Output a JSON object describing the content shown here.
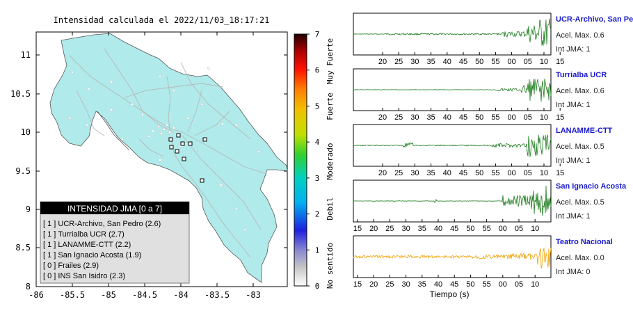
{
  "map": {
    "title": "Intensidad calculada el 2022/11/03_18:17:21",
    "x_ticks": [
      "-86",
      "-85.5",
      "-85",
      "-84.5",
      "-84",
      "-83.5",
      "-83"
    ],
    "y_ticks": [
      "11",
      "10.5",
      "10",
      "9.5",
      "9",
      "8.5",
      "8"
    ],
    "land_color": "#b0eaea",
    "road_color": "#b8b8b8"
  },
  "colorbar": {
    "ticks": [
      "7",
      "6",
      "5",
      "4",
      "3",
      "2",
      "1",
      "0"
    ],
    "categories": [
      "Muy Fuerte",
      "Fuerte",
      "Moderado",
      "Debil",
      "No sentido"
    ]
  },
  "legend": {
    "title": "INTENSIDAD JMA [0 a 7]",
    "items": [
      "[ 1 ]  UCR-Archivo, San Pedro (2.6)",
      "[ 1 ]  Turrialba UCR (2.7)",
      "[ 1 ]  LANAMME-CTT (2.2)",
      "[ 1 ]  San Ignacio Acosta (1.9)",
      "[ 0 ]  Frailes (2.9)",
      "[ 0 ]  INS San Isidro (2.3)"
    ]
  },
  "chart_data": [
    {
      "type": "line",
      "station": "UCR-Archivo, San Pedro",
      "accel_label": "Acel. Max. 0.6",
      "int_label": "Int JMA: 1",
      "ticks": [
        "20",
        "25",
        "30",
        "35",
        "40",
        "45",
        "50",
        "55",
        "00",
        "05",
        "10",
        "15"
      ],
      "color": "#1a7a1a"
    },
    {
      "type": "line",
      "station": "Turrialba UCR",
      "accel_label": "Acel. Max. 0.6",
      "int_label": "Int JMA: 1",
      "ticks": [
        "20",
        "25",
        "30",
        "35",
        "40",
        "45",
        "50",
        "55",
        "00",
        "05",
        "10",
        "15"
      ],
      "color": "#1a7a1a"
    },
    {
      "type": "line",
      "station": "LANAMME-CTT",
      "accel_label": "Acel. Max. 0.5",
      "int_label": "Int JMA: 1",
      "ticks": [
        "20",
        "25",
        "30",
        "35",
        "40",
        "45",
        "50",
        "55",
        "00",
        "05",
        "10",
        "15"
      ],
      "color": "#1a7a1a"
    },
    {
      "type": "line",
      "station": "San Ignacio Acosta",
      "accel_label": "Acel. Max. 0.5",
      "int_label": "Int JMA: 1",
      "ticks": [
        "15",
        "20",
        "25",
        "30",
        "35",
        "40",
        "45",
        "50",
        "55",
        "00",
        "05",
        "10"
      ],
      "color": "#1a7a1a"
    },
    {
      "type": "line",
      "station": "Teatro Nacional",
      "accel_label": "Acel. Max. 0.0",
      "int_label": "Int JMA: 0",
      "ticks": [
        "15",
        "20",
        "25",
        "30",
        "35",
        "40",
        "45",
        "50",
        "55",
        "00",
        "05",
        "10"
      ],
      "color": "#f0a000",
      "xlabel": "Tiempo (s)"
    }
  ]
}
